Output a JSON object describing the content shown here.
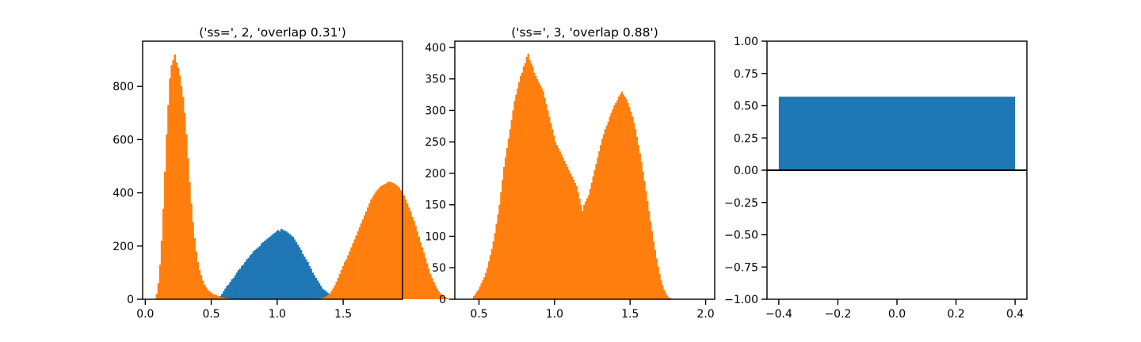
{
  "colors": {
    "blue": "#1f77b4",
    "orange": "#ff7f0e",
    "axis": "#000000"
  },
  "chart_data": [
    {
      "type": "histogram",
      "title": "('ss=', 2, 'overlap 0.31')",
      "xlim": [
        -0.02,
        1.95
      ],
      "ylim": [
        0,
        970
      ],
      "xticks": [
        0.0,
        0.5,
        1.0,
        1.5
      ],
      "xtick_labels": [
        "0.0",
        "0.5",
        "1.0",
        "1.5"
      ],
      "yticks": [
        0,
        200,
        400,
        600,
        800
      ],
      "ytick_labels": [
        "0",
        "200",
        "400",
        "600",
        "800"
      ],
      "series": [
        {
          "color": "blue",
          "x0": 0.55,
          "bin_width": 0.0125,
          "values": [
            5,
            12,
            20,
            30,
            40,
            50,
            55,
            65,
            75,
            80,
            90,
            100,
            110,
            115,
            125,
            130,
            140,
            150,
            155,
            165,
            170,
            180,
            185,
            190,
            195,
            200,
            210,
            215,
            220,
            225,
            230,
            235,
            240,
            245,
            250,
            255,
            260,
            255,
            265,
            260,
            258,
            255,
            250,
            245,
            240,
            235,
            225,
            215,
            205,
            195,
            185,
            170,
            160,
            150,
            140,
            125,
            115,
            100,
            90,
            80,
            70,
            60,
            50,
            40,
            35,
            30,
            25,
            20,
            15,
            10
          ]
        },
        {
          "color": "orange",
          "x0": 0.08,
          "bin_width": 0.0125,
          "values": [
            20,
            60,
            130,
            220,
            340,
            480,
            620,
            730,
            830,
            880,
            900,
            920,
            890,
            870,
            840,
            800,
            760,
            700,
            620,
            530,
            440,
            360,
            290,
            230,
            180,
            140,
            110,
            90,
            70,
            55,
            45,
            35,
            30,
            25,
            20,
            18,
            15,
            12,
            10,
            8,
            6,
            5,
            4,
            3,
            3,
            2,
            2,
            1,
            1,
            1,
            0,
            0,
            0,
            0,
            0,
            0,
            0,
            0,
            0,
            0,
            0,
            0,
            0,
            0,
            0,
            0,
            0,
            0,
            0,
            0,
            0,
            0,
            0,
            0,
            0,
            0,
            0,
            0,
            0,
            0,
            0,
            0,
            0,
            0,
            0,
            0,
            0,
            0,
            0,
            0,
            0,
            0,
            0,
            0,
            0,
            0,
            0,
            1,
            2,
            3,
            4,
            6,
            8,
            12,
            16,
            22,
            30,
            40,
            52,
            65,
            80,
            95,
            110,
            125,
            140,
            150,
            165,
            180,
            195,
            210,
            225,
            240,
            255,
            270,
            285,
            300,
            315,
            330,
            345,
            360,
            375,
            385,
            395,
            405,
            412,
            420,
            425,
            428,
            432,
            435,
            440,
            442,
            440,
            438,
            435,
            430,
            425,
            420,
            410,
            400,
            390,
            375,
            360,
            345,
            330,
            310,
            295,
            275,
            255,
            235,
            215,
            195,
            175,
            155,
            135,
            115,
            95,
            80,
            65,
            52,
            40,
            30,
            22,
            16,
            11,
            8,
            5,
            3,
            2,
            1
          ]
        }
      ]
    },
    {
      "type": "histogram",
      "title": "('ss=', 3, 'overlap 0.88')",
      "xlim": [
        0.34,
        2.06
      ],
      "ylim": [
        0,
        410
      ],
      "xticks": [
        0.5,
        1.0,
        1.5,
        2.0
      ],
      "xtick_labels": [
        "0.5",
        "1.0",
        "1.5",
        "2.0"
      ],
      "yticks": [
        0,
        50,
        100,
        150,
        200,
        250,
        300,
        350,
        400
      ],
      "ytick_labels": [
        "0",
        "50",
        "100",
        "150",
        "200",
        "250",
        "300",
        "350",
        "400"
      ],
      "series": [
        {
          "color": "blue",
          "x0": 1.23,
          "bin_width": 0.01,
          "values": [
            140,
            150,
            175,
            190,
            200,
            215,
            220,
            225,
            235,
            255,
            270,
            265,
            275,
            285,
            290,
            280,
            275,
            270,
            265,
            260
          ]
        },
        {
          "color": "orange",
          "x0": 0.46,
          "bin_width": 0.01,
          "values": [
            5,
            8,
            12,
            15,
            20,
            25,
            30,
            35,
            42,
            50,
            60,
            70,
            80,
            92,
            105,
            120,
            135,
            150,
            170,
            190,
            210,
            225,
            240,
            255,
            270,
            285,
            300,
            315,
            325,
            335,
            345,
            355,
            360,
            370,
            375,
            385,
            390,
            380,
            375,
            370,
            360,
            355,
            350,
            345,
            340,
            335,
            330,
            320,
            310,
            300,
            290,
            280,
            270,
            260,
            250,
            245,
            240,
            235,
            230,
            225,
            220,
            215,
            210,
            205,
            200,
            195,
            190,
            185,
            180,
            170,
            160,
            150,
            140,
            150,
            155,
            160,
            165,
            175,
            185,
            195,
            205,
            215,
            225,
            235,
            245,
            255,
            262,
            270,
            276,
            282,
            290,
            296,
            302,
            308,
            312,
            316,
            322,
            326,
            330,
            325,
            322,
            318,
            312,
            305,
            298,
            290,
            280,
            270,
            258,
            245,
            232,
            218,
            203,
            188,
            172,
            156,
            140,
            124,
            108,
            92,
            78,
            65,
            52,
            40,
            30,
            22,
            15,
            10,
            6,
            3,
            2,
            1
          ]
        }
      ]
    },
    {
      "type": "bar",
      "title": "",
      "xlim": [
        -0.44,
        0.44
      ],
      "ylim": [
        -1.0,
        1.0
      ],
      "xticks": [
        -0.4,
        -0.2,
        0.0,
        0.2,
        0.4
      ],
      "xtick_labels": [
        "−0.4",
        "−0.2",
        "0.0",
        "0.2",
        "0.4"
      ],
      "yticks": [
        -1.0,
        -0.75,
        -0.5,
        -0.25,
        0.0,
        0.25,
        0.5,
        0.75,
        1.0
      ],
      "ytick_labels": [
        "−1.00",
        "−0.75",
        "−0.50",
        "−0.25",
        "0.00",
        "0.25",
        "0.50",
        "0.75",
        "1.00"
      ],
      "bars": [
        {
          "x": 0.0,
          "width": 0.8,
          "value": 0.57,
          "color": "blue"
        }
      ],
      "hline": 0.0
    }
  ]
}
